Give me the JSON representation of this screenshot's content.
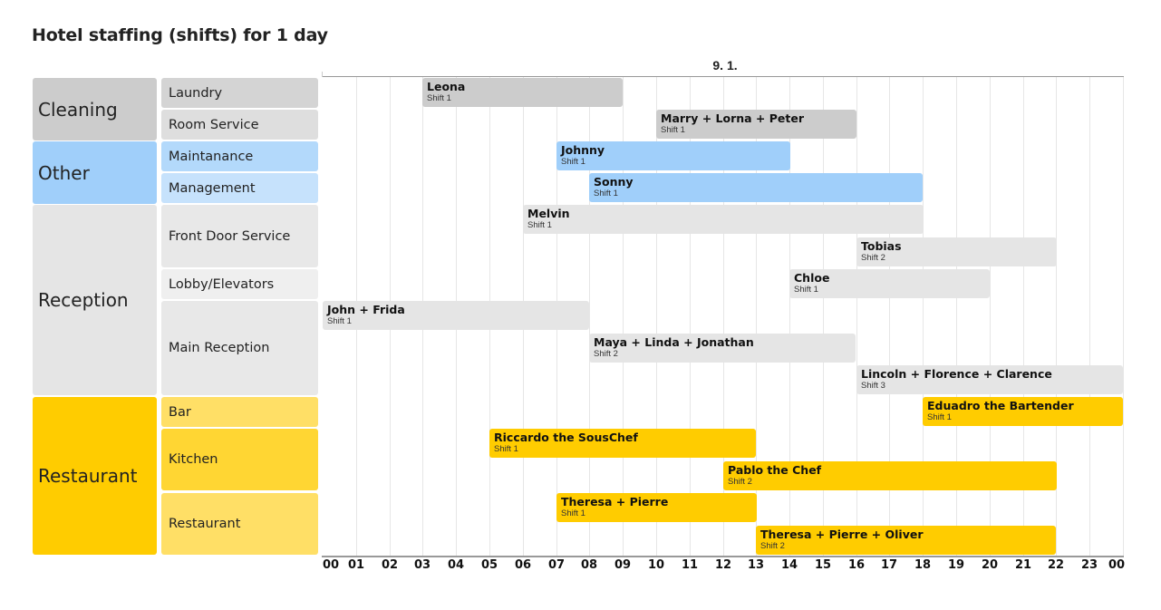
{
  "title": "Hotel staffing (shifts) for 1 day",
  "colors": {
    "cleaning": "#cccccc",
    "cleaning_sub1": "#d4d4d4",
    "cleaning_sub2": "#dedede",
    "other": "#a0cffa",
    "other_sub1": "#b3d9fb",
    "other_sub2": "#c6e2fc",
    "reception": "#e5e5e5",
    "reception_sub1": "#e8e8e8",
    "reception_sub2": "#efefef",
    "restaurant": "#ffcc00",
    "restaurant_sub1": "#ffdf66",
    "restaurant_sub2": "#ffd633",
    "grid": "#e6e6e6",
    "axis": "#999999"
  },
  "chart_data": {
    "type": "gantt",
    "title": "Hotel staffing (shifts) for 1 day",
    "x_axis_top_label": "9. 1.",
    "xlabel": "",
    "ylabel": "",
    "x_range": [
      0,
      24
    ],
    "x_ticks": [
      "00",
      "01",
      "02",
      "03",
      "04",
      "05",
      "06",
      "07",
      "08",
      "09",
      "10",
      "11",
      "12",
      "13",
      "14",
      "15",
      "16",
      "17",
      "18",
      "19",
      "20",
      "21",
      "22",
      "23",
      "00"
    ],
    "grid": true,
    "categories": [
      {
        "name": "Cleaning",
        "subcategories": [
          "Laundry",
          "Room Service"
        ]
      },
      {
        "name": "Other",
        "subcategories": [
          "Maintanance",
          "Management"
        ]
      },
      {
        "name": "Reception",
        "subcategories": [
          "Front Door Service",
          "Lobby/Elevators",
          "Main Reception"
        ]
      },
      {
        "name": "Restaurant",
        "subcategories": [
          "Bar",
          "Kitchen",
          "Restaurant"
        ]
      }
    ],
    "tasks": [
      {
        "category": "Cleaning",
        "row": "Laundry",
        "name": "Leona",
        "shift": "Shift 1",
        "start": 3,
        "end": 9
      },
      {
        "category": "Cleaning",
        "row": "Room Service",
        "name": "Marry + Lorna + Peter",
        "shift": "Shift 1",
        "start": 10,
        "end": 16
      },
      {
        "category": "Other",
        "row": "Maintanance",
        "name": "Johnny",
        "shift": "Shift 1",
        "start": 7,
        "end": 14
      },
      {
        "category": "Other",
        "row": "Management",
        "name": "Sonny",
        "shift": "Shift 1",
        "start": 8,
        "end": 18
      },
      {
        "category": "Reception",
        "row": "Front Door Service",
        "name": "Melvin",
        "shift": "Shift 1",
        "start": 6,
        "end": 18
      },
      {
        "category": "Reception",
        "row": "Front Door Service",
        "name": "Tobias",
        "shift": "Shift 2",
        "start": 16,
        "end": 22
      },
      {
        "category": "Reception",
        "row": "Lobby/Elevators",
        "name": "Chloe",
        "shift": "Shift 1",
        "start": 14,
        "end": 20
      },
      {
        "category": "Reception",
        "row": "Main Reception",
        "name": "John + Frida",
        "shift": "Shift 1",
        "start": 0,
        "end": 8
      },
      {
        "category": "Reception",
        "row": "Main Reception",
        "name": "Maya + Linda + Jonathan",
        "shift": "Shift 2",
        "start": 8,
        "end": 16
      },
      {
        "category": "Reception",
        "row": "Main Reception",
        "name": "Lincoln + Florence + Clarence",
        "shift": "Shift 3",
        "start": 16,
        "end": 24
      },
      {
        "category": "Restaurant",
        "row": "Bar",
        "name": "Eduadro the Bartender",
        "shift": "Shift 1",
        "start": 18,
        "end": 24
      },
      {
        "category": "Restaurant",
        "row": "Kitchen",
        "name": "Riccardo the SousChef",
        "shift": "Shift 1",
        "start": 5,
        "end": 13
      },
      {
        "category": "Restaurant",
        "row": "Kitchen",
        "name": "Pablo the Chef",
        "shift": "Shift 2",
        "start": 12,
        "end": 22
      },
      {
        "category": "Restaurant",
        "row": "Restaurant",
        "name": "Theresa + Pierre",
        "shift": "Shift 1",
        "start": 7,
        "end": 13
      },
      {
        "category": "Restaurant",
        "row": "Restaurant",
        "name": "Theresa + Pierre + Oliver",
        "shift": "Shift 2",
        "start": 13,
        "end": 22
      }
    ]
  },
  "labels": {
    "categories": [
      "Cleaning",
      "Other",
      "Reception",
      "Restaurant"
    ],
    "subcategories": [
      "Laundry",
      "Room Service",
      "Maintanance",
      "Management",
      "Front Door Service",
      "Lobby/Elevators",
      "Main Reception",
      "Bar",
      "Kitchen",
      "Restaurant"
    ]
  }
}
